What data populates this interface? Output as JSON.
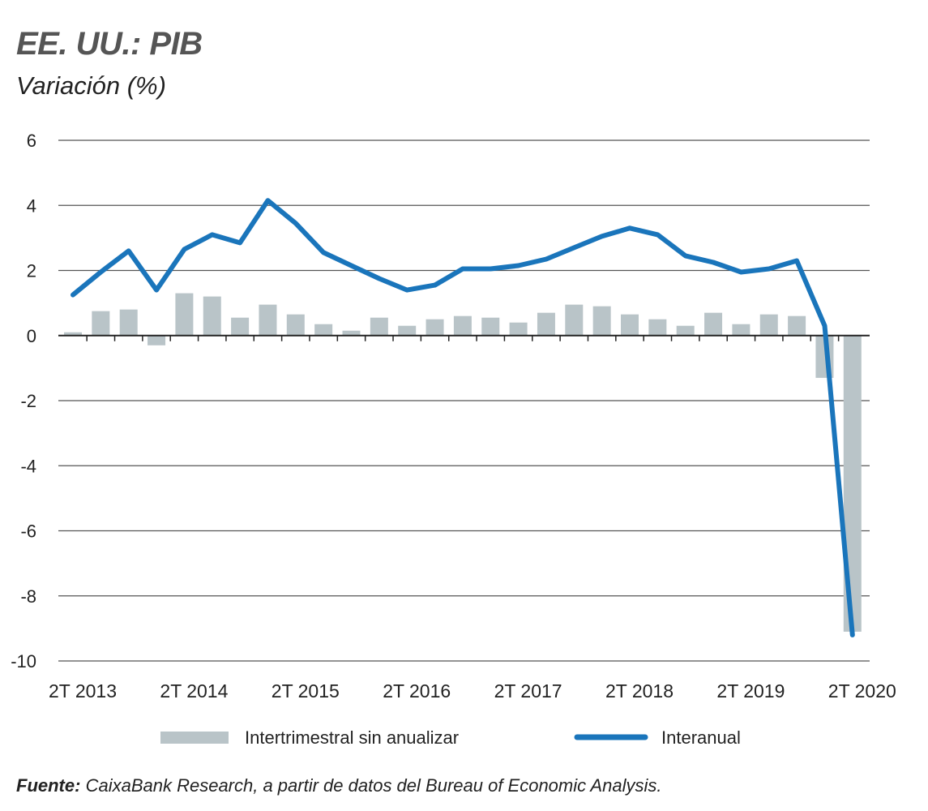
{
  "header": {
    "title": "EE. UU.: PIB",
    "subtitle": "Variación (%)"
  },
  "source": {
    "label": "Fuente:",
    "text": "CaixaBank Research, a partir de datos del Bureau of Economic Analysis."
  },
  "colors": {
    "bars": "#b9c4c8",
    "line": "#1a75bb",
    "grid": "#555555",
    "axis": "#222222"
  },
  "chart_data": {
    "type": "bar+line",
    "title": "EE. UU.: PIB",
    "subtitle": "Variación (%)",
    "ylim": [
      -10,
      6
    ],
    "yticks": [
      "6",
      "4",
      "2",
      "0",
      "-2",
      "-4",
      "-6",
      "-8",
      "-10"
    ],
    "ytick_values": [
      6,
      4,
      2,
      0,
      -2,
      -4,
      -6,
      -8,
      -10
    ],
    "xtick_labels": [
      "2T 2013",
      "2T 2014",
      "2T 2015",
      "2T 2016",
      "2T 2017",
      "2T 2018",
      "2T 2019",
      "2T 2020"
    ],
    "grid": true,
    "legend_position": "bottom",
    "series": [
      {
        "name": "Intertrimestral sin anualizar",
        "kind": "bar",
        "values": [
          0.1,
          0.75,
          0.8,
          -0.3,
          1.3,
          1.2,
          0.55,
          0.95,
          0.65,
          0.35,
          0.15,
          0.55,
          0.3,
          0.5,
          0.6,
          0.55,
          0.4,
          0.7,
          0.95,
          0.9,
          0.65,
          0.5,
          0.3,
          0.7,
          0.35,
          0.65,
          0.6,
          -1.3,
          -9.1
        ]
      },
      {
        "name": "Interanual",
        "kind": "line",
        "values": [
          1.25,
          1.95,
          2.6,
          1.4,
          2.65,
          3.1,
          2.85,
          4.15,
          3.45,
          2.55,
          2.15,
          1.75,
          1.4,
          1.55,
          2.05,
          2.05,
          2.15,
          2.35,
          2.7,
          3.05,
          3.3,
          3.1,
          2.45,
          2.25,
          1.95,
          2.05,
          2.3,
          0.3,
          -9.2
        ]
      }
    ]
  }
}
